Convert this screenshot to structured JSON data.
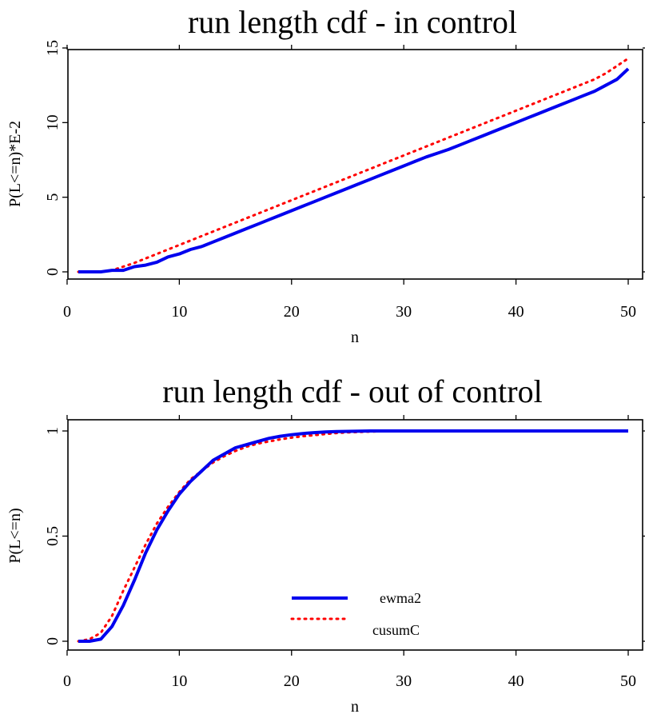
{
  "chart_data": [
    {
      "type": "line",
      "title": "run length cdf - in control",
      "xlabel": "n",
      "ylabel": "P(L<=n)*E-2",
      "xlim": [
        1,
        50
      ],
      "ylim": [
        0,
        15
      ],
      "x_ticks": [
        "0",
        "10",
        "20",
        "30",
        "40",
        "50"
      ],
      "y_ticks": [
        "0",
        "5",
        "10",
        "15"
      ],
      "grid": false,
      "legend": "none",
      "x": [
        1,
        2,
        3,
        4,
        5,
        6,
        7,
        8,
        9,
        10,
        11,
        12,
        13,
        14,
        15,
        16,
        17,
        18,
        19,
        20,
        21,
        22,
        23,
        24,
        25,
        26,
        27,
        28,
        29,
        30,
        31,
        32,
        33,
        34,
        35,
        36,
        37,
        38,
        39,
        40,
        41,
        42,
        43,
        44,
        45,
        46,
        47,
        48,
        49,
        50
      ],
      "series": [
        {
          "name": "ewma2",
          "color": "#0000ee",
          "style": "solid",
          "values": [
            0,
            0,
            0,
            0.1,
            0.1,
            0.35,
            0.45,
            0.65,
            1.0,
            1.2,
            1.5,
            1.7,
            2.0,
            2.3,
            2.6,
            2.9,
            3.2,
            3.5,
            3.8,
            4.1,
            4.4,
            4.7,
            5.0,
            5.3,
            5.6,
            5.9,
            6.2,
            6.5,
            6.8,
            7.1,
            7.4,
            7.7,
            7.95,
            8.2,
            8.5,
            8.8,
            9.1,
            9.4,
            9.7,
            10.0,
            10.3,
            10.6,
            10.9,
            11.2,
            11.5,
            11.8,
            12.1,
            12.5,
            12.9,
            13.6
          ]
        },
        {
          "name": "cusumC",
          "color": "#ff0000",
          "style": "dotted",
          "values": [
            0,
            0,
            0,
            0.1,
            0.35,
            0.6,
            0.9,
            1.2,
            1.5,
            1.8,
            2.1,
            2.4,
            2.7,
            3.0,
            3.3,
            3.6,
            3.9,
            4.2,
            4.5,
            4.8,
            5.1,
            5.4,
            5.7,
            6.0,
            6.3,
            6.6,
            6.9,
            7.2,
            7.5,
            7.8,
            8.1,
            8.4,
            8.7,
            9.0,
            9.3,
            9.6,
            9.9,
            10.2,
            10.5,
            10.8,
            11.1,
            11.4,
            11.7,
            12.0,
            12.3,
            12.6,
            12.9,
            13.3,
            13.8,
            14.3
          ]
        }
      ]
    },
    {
      "type": "line",
      "title": "run length cdf - out of control",
      "xlabel": "n",
      "ylabel": "P(L<=n)",
      "xlim": [
        1,
        50
      ],
      "ylim": [
        0,
        1
      ],
      "x_ticks": [
        "0",
        "10",
        "20",
        "30",
        "40",
        "50"
      ],
      "y_ticks": [
        "0",
        "0.5",
        "1"
      ],
      "grid": false,
      "legend": "bottom-center",
      "x": [
        1,
        2,
        3,
        4,
        5,
        6,
        7,
        8,
        9,
        10,
        11,
        12,
        13,
        14,
        15,
        16,
        17,
        18,
        19,
        20,
        21,
        22,
        23,
        24,
        25,
        26,
        27,
        28,
        29,
        30,
        31,
        32,
        33,
        34,
        35,
        36,
        37,
        38,
        39,
        40,
        41,
        42,
        43,
        44,
        45,
        46,
        47,
        48,
        49,
        50
      ],
      "series": [
        {
          "name": "ewma2",
          "color": "#0000ee",
          "style": "solid",
          "values": [
            0,
            0,
            0.01,
            0.07,
            0.17,
            0.29,
            0.42,
            0.53,
            0.62,
            0.7,
            0.76,
            0.81,
            0.86,
            0.89,
            0.92,
            0.935,
            0.95,
            0.965,
            0.975,
            0.982,
            0.988,
            0.992,
            0.995,
            0.997,
            0.998,
            0.999,
            1,
            1,
            1,
            1,
            1,
            1,
            1,
            1,
            1,
            1,
            1,
            1,
            1,
            1,
            1,
            1,
            1,
            1,
            1,
            1,
            1,
            1,
            1,
            1
          ]
        },
        {
          "name": "cusumC",
          "color": "#ff0000",
          "style": "dotted",
          "values": [
            0,
            0.01,
            0.04,
            0.12,
            0.24,
            0.35,
            0.46,
            0.56,
            0.64,
            0.71,
            0.77,
            0.81,
            0.85,
            0.88,
            0.905,
            0.925,
            0.94,
            0.95,
            0.96,
            0.968,
            0.975,
            0.98,
            0.985,
            0.99,
            0.993,
            0.995,
            0.997,
            0.998,
            0.999,
            1,
            1,
            1,
            1,
            1,
            1,
            1,
            1,
            1,
            1,
            1,
            1,
            1,
            1,
            1,
            1,
            1,
            1,
            1,
            1,
            1
          ]
        }
      ]
    }
  ]
}
